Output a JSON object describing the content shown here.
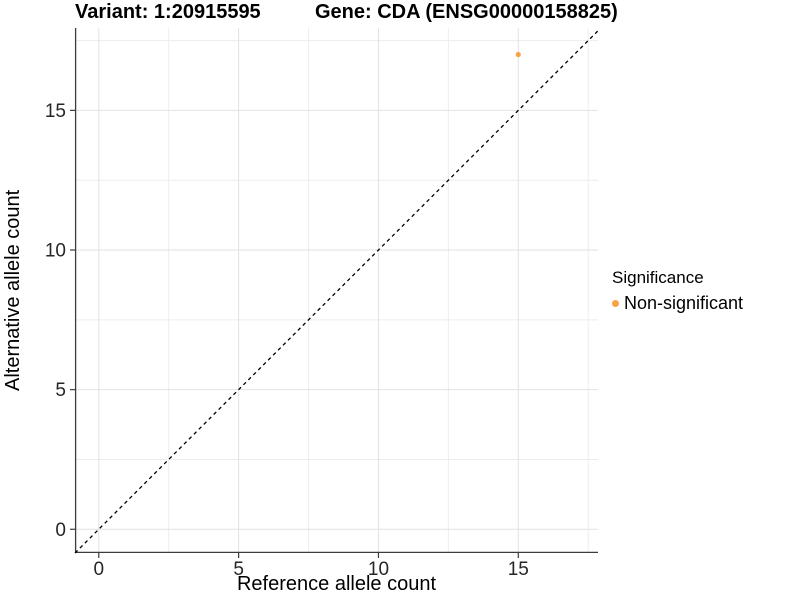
{
  "figure": {
    "title_variant": "Variant: 1:20915595",
    "title_gene": "Gene: CDA (ENSG00000158825)"
  },
  "axes": {
    "x_title": "Reference allele count",
    "y_title": "Alternative allele count"
  },
  "legend": {
    "title": "Significance",
    "items": [
      {
        "label": "Non-significant",
        "color": "#F9A243"
      }
    ]
  },
  "chart_data": {
    "type": "scatter",
    "title": "Variant: 1:20915595   Gene: CDA (ENSG00000158825)",
    "xlabel": "Reference allele count",
    "ylabel": "Alternative allele count",
    "xlim": [
      -0.85,
      17.85
    ],
    "ylim": [
      -0.85,
      17.95
    ],
    "x_ticks": [
      0,
      5,
      10,
      15
    ],
    "y_ticks": [
      0,
      5,
      10,
      15
    ],
    "x_minor_gridlines": [
      2.5,
      7.5,
      12.5,
      17.5
    ],
    "y_minor_gridlines": [
      2.5,
      7.5,
      12.5,
      17.5
    ],
    "grid": "major+minor",
    "legend_position": "right",
    "series": [
      {
        "name": "Non-significant",
        "color": "#F9A243",
        "point_radius": 2.6,
        "points": [
          {
            "x": 15,
            "y": 17
          }
        ]
      }
    ],
    "reference_line": {
      "equation": "y = x",
      "style": "dashed",
      "color": "#000000",
      "dash": [
        3.6,
        3.4
      ],
      "width": 1.3
    },
    "style": {
      "grid_major_color": "#E2E2E2",
      "grid_minor_color": "#EDEDED",
      "axis_line_color": "#3C3C3C",
      "tick_label_color": "#262626",
      "tick_font_size": 19,
      "background": "#FFFFFF"
    }
  }
}
